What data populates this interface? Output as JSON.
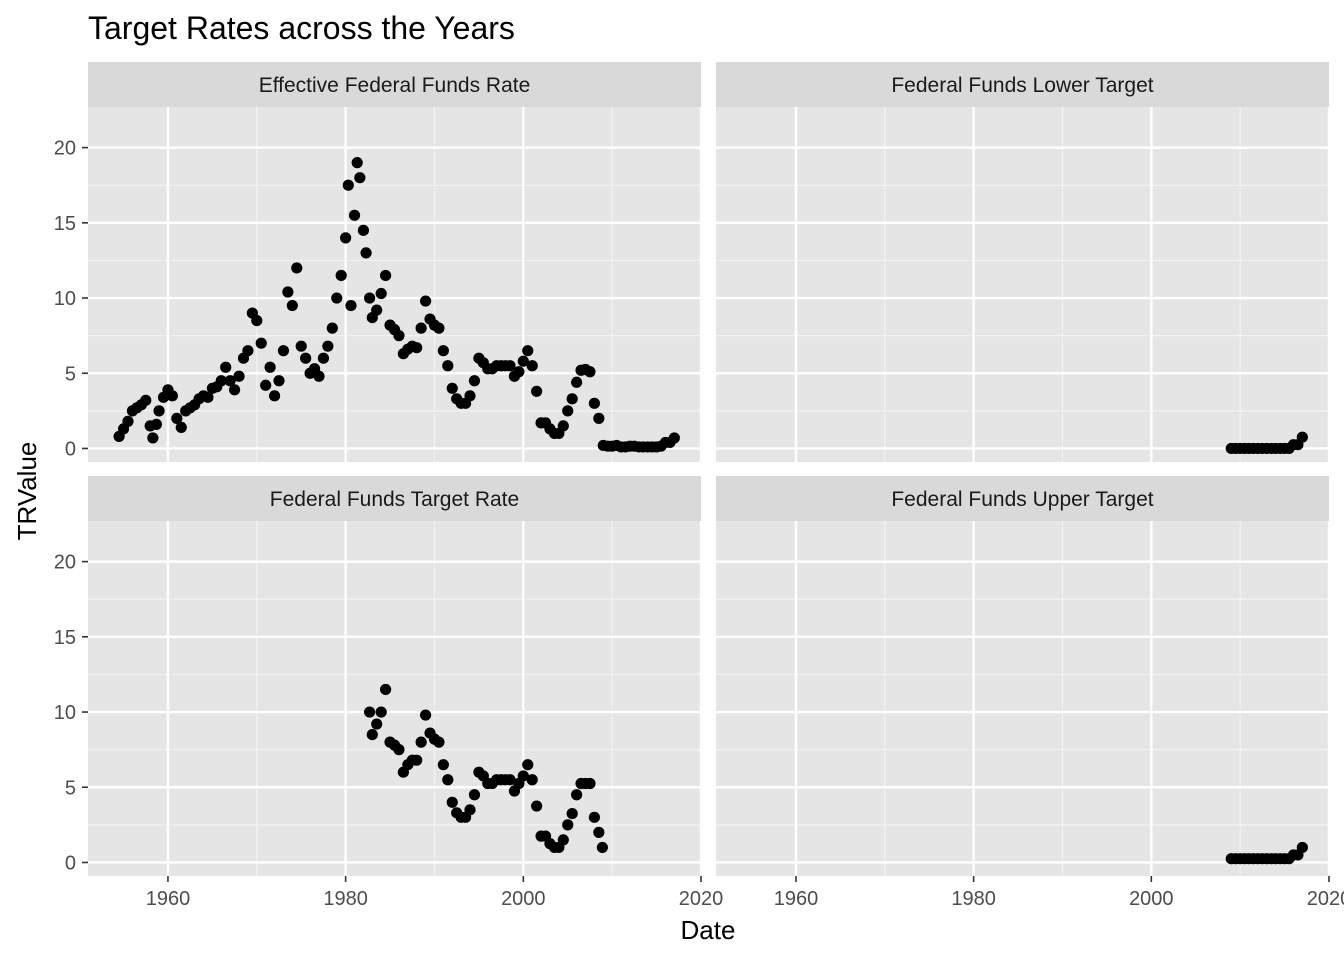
{
  "chart_data": {
    "type": "scatter",
    "title": "Target Rates across the Years",
    "xlabel": "Date",
    "ylabel": "TRValue",
    "xlim": [
      1951,
      2020
    ],
    "ylim": [
      -0.9,
      22.7
    ],
    "x_ticks": [
      1960,
      1980,
      2000,
      2020
    ],
    "y_ticks": [
      0,
      5,
      10,
      15,
      20
    ],
    "grid": true,
    "point_color": "#000000",
    "panel_background": "#e5e5e5",
    "strip_background": "#d9d9d9",
    "facets": [
      {
        "name": "Effective Federal Funds Rate",
        "series": [
          {
            "x": 1954.5,
            "y": 0.8
          },
          {
            "x": 1955.0,
            "y": 1.3
          },
          {
            "x": 1955.5,
            "y": 1.8
          },
          {
            "x": 1956.0,
            "y": 2.5
          },
          {
            "x": 1956.5,
            "y": 2.7
          },
          {
            "x": 1957.0,
            "y": 2.9
          },
          {
            "x": 1957.5,
            "y": 3.2
          },
          {
            "x": 1958.0,
            "y": 1.5
          },
          {
            "x": 1958.3,
            "y": 0.7
          },
          {
            "x": 1958.7,
            "y": 1.6
          },
          {
            "x": 1959.0,
            "y": 2.5
          },
          {
            "x": 1959.5,
            "y": 3.4
          },
          {
            "x": 1960.0,
            "y": 3.9
          },
          {
            "x": 1960.5,
            "y": 3.5
          },
          {
            "x": 1961.0,
            "y": 2.0
          },
          {
            "x": 1961.5,
            "y": 1.4
          },
          {
            "x": 1962.0,
            "y": 2.5
          },
          {
            "x": 1962.5,
            "y": 2.7
          },
          {
            "x": 1963.0,
            "y": 2.9
          },
          {
            "x": 1963.5,
            "y": 3.3
          },
          {
            "x": 1964.0,
            "y": 3.5
          },
          {
            "x": 1964.5,
            "y": 3.4
          },
          {
            "x": 1965.0,
            "y": 4.0
          },
          {
            "x": 1965.5,
            "y": 4.1
          },
          {
            "x": 1966.0,
            "y": 4.5
          },
          {
            "x": 1966.5,
            "y": 5.4
          },
          {
            "x": 1967.0,
            "y": 4.5
          },
          {
            "x": 1967.5,
            "y": 3.9
          },
          {
            "x": 1968.0,
            "y": 4.8
          },
          {
            "x": 1968.5,
            "y": 6.0
          },
          {
            "x": 1969.0,
            "y": 6.5
          },
          {
            "x": 1969.5,
            "y": 9.0
          },
          {
            "x": 1970.0,
            "y": 8.5
          },
          {
            "x": 1970.5,
            "y": 7.0
          },
          {
            "x": 1971.0,
            "y": 4.2
          },
          {
            "x": 1971.5,
            "y": 5.4
          },
          {
            "x": 1972.0,
            "y": 3.5
          },
          {
            "x": 1972.5,
            "y": 4.5
          },
          {
            "x": 1973.0,
            "y": 6.5
          },
          {
            "x": 1973.5,
            "y": 10.4
          },
          {
            "x": 1974.0,
            "y": 9.5
          },
          {
            "x": 1974.5,
            "y": 12.0
          },
          {
            "x": 1975.0,
            "y": 6.8
          },
          {
            "x": 1975.5,
            "y": 6.0
          },
          {
            "x": 1976.0,
            "y": 5.0
          },
          {
            "x": 1976.5,
            "y": 5.3
          },
          {
            "x": 1977.0,
            "y": 4.8
          },
          {
            "x": 1977.5,
            "y": 6.0
          },
          {
            "x": 1978.0,
            "y": 6.8
          },
          {
            "x": 1978.5,
            "y": 8.0
          },
          {
            "x": 1979.0,
            "y": 10.0
          },
          {
            "x": 1979.5,
            "y": 11.5
          },
          {
            "x": 1980.0,
            "y": 14.0
          },
          {
            "x": 1980.3,
            "y": 17.5
          },
          {
            "x": 1980.6,
            "y": 9.5
          },
          {
            "x": 1981.0,
            "y": 15.5
          },
          {
            "x": 1981.3,
            "y": 19.0
          },
          {
            "x": 1981.6,
            "y": 18.0
          },
          {
            "x": 1982.0,
            "y": 14.5
          },
          {
            "x": 1982.3,
            "y": 13.0
          },
          {
            "x": 1982.7,
            "y": 10.0
          },
          {
            "x": 1983.0,
            "y": 8.7
          },
          {
            "x": 1983.5,
            "y": 9.2
          },
          {
            "x": 1984.0,
            "y": 10.3
          },
          {
            "x": 1984.5,
            "y": 11.5
          },
          {
            "x": 1985.0,
            "y": 8.2
          },
          {
            "x": 1985.5,
            "y": 7.9
          },
          {
            "x": 1986.0,
            "y": 7.5
          },
          {
            "x": 1986.5,
            "y": 6.3
          },
          {
            "x": 1987.0,
            "y": 6.6
          },
          {
            "x": 1987.5,
            "y": 6.8
          },
          {
            "x": 1988.0,
            "y": 6.7
          },
          {
            "x": 1988.5,
            "y": 8.0
          },
          {
            "x": 1989.0,
            "y": 9.8
          },
          {
            "x": 1989.5,
            "y": 8.6
          },
          {
            "x": 1990.0,
            "y": 8.2
          },
          {
            "x": 1990.5,
            "y": 8.0
          },
          {
            "x": 1991.0,
            "y": 6.5
          },
          {
            "x": 1991.5,
            "y": 5.5
          },
          {
            "x": 1992.0,
            "y": 4.0
          },
          {
            "x": 1992.5,
            "y": 3.3
          },
          {
            "x": 1993.0,
            "y": 3.0
          },
          {
            "x": 1993.5,
            "y": 3.0
          },
          {
            "x": 1994.0,
            "y": 3.5
          },
          {
            "x": 1994.5,
            "y": 4.5
          },
          {
            "x": 1995.0,
            "y": 6.0
          },
          {
            "x": 1995.5,
            "y": 5.7
          },
          {
            "x": 1996.0,
            "y": 5.3
          },
          {
            "x": 1996.5,
            "y": 5.3
          },
          {
            "x": 1997.0,
            "y": 5.5
          },
          {
            "x": 1997.5,
            "y": 5.5
          },
          {
            "x": 1998.0,
            "y": 5.5
          },
          {
            "x": 1998.5,
            "y": 5.5
          },
          {
            "x": 1999.0,
            "y": 4.8
          },
          {
            "x": 1999.5,
            "y": 5.1
          },
          {
            "x": 2000.0,
            "y": 5.8
          },
          {
            "x": 2000.5,
            "y": 6.5
          },
          {
            "x": 2001.0,
            "y": 5.5
          },
          {
            "x": 2001.5,
            "y": 3.8
          },
          {
            "x": 2002.0,
            "y": 1.7
          },
          {
            "x": 2002.5,
            "y": 1.7
          },
          {
            "x": 2003.0,
            "y": 1.3
          },
          {
            "x": 2003.5,
            "y": 1.0
          },
          {
            "x": 2004.0,
            "y": 1.0
          },
          {
            "x": 2004.5,
            "y": 1.5
          },
          {
            "x": 2005.0,
            "y": 2.5
          },
          {
            "x": 2005.5,
            "y": 3.3
          },
          {
            "x": 2006.0,
            "y": 4.4
          },
          {
            "x": 2006.5,
            "y": 5.2
          },
          {
            "x": 2007.0,
            "y": 5.25
          },
          {
            "x": 2007.5,
            "y": 5.1
          },
          {
            "x": 2008.0,
            "y": 3.0
          },
          {
            "x": 2008.5,
            "y": 2.0
          },
          {
            "x": 2009.0,
            "y": 0.2
          },
          {
            "x": 2009.5,
            "y": 0.15
          },
          {
            "x": 2010.0,
            "y": 0.15
          },
          {
            "x": 2010.5,
            "y": 0.2
          },
          {
            "x": 2011.0,
            "y": 0.1
          },
          {
            "x": 2011.5,
            "y": 0.1
          },
          {
            "x": 2012.0,
            "y": 0.15
          },
          {
            "x": 2012.5,
            "y": 0.15
          },
          {
            "x": 2013.0,
            "y": 0.1
          },
          {
            "x": 2013.5,
            "y": 0.1
          },
          {
            "x": 2014.0,
            "y": 0.1
          },
          {
            "x": 2014.5,
            "y": 0.1
          },
          {
            "x": 2015.0,
            "y": 0.1
          },
          {
            "x": 2015.5,
            "y": 0.15
          },
          {
            "x": 2016.0,
            "y": 0.4
          },
          {
            "x": 2016.5,
            "y": 0.4
          },
          {
            "x": 2017.0,
            "y": 0.7
          }
        ]
      },
      {
        "name": "Federal Funds Lower Target",
        "series": [
          {
            "x": 2009.0,
            "y": 0.0
          },
          {
            "x": 2009.5,
            "y": 0.0
          },
          {
            "x": 2010.0,
            "y": 0.0
          },
          {
            "x": 2010.5,
            "y": 0.0
          },
          {
            "x": 2011.0,
            "y": 0.0
          },
          {
            "x": 2011.5,
            "y": 0.0
          },
          {
            "x": 2012.0,
            "y": 0.0
          },
          {
            "x": 2012.5,
            "y": 0.0
          },
          {
            "x": 2013.0,
            "y": 0.0
          },
          {
            "x": 2013.5,
            "y": 0.0
          },
          {
            "x": 2014.0,
            "y": 0.0
          },
          {
            "x": 2014.5,
            "y": 0.0
          },
          {
            "x": 2015.0,
            "y": 0.0
          },
          {
            "x": 2015.5,
            "y": 0.0
          },
          {
            "x": 2016.0,
            "y": 0.25
          },
          {
            "x": 2016.5,
            "y": 0.25
          },
          {
            "x": 2017.0,
            "y": 0.75
          }
        ]
      },
      {
        "name": "Federal Funds Target Rate",
        "series": [
          {
            "x": 1982.7,
            "y": 10.0
          },
          {
            "x": 1983.0,
            "y": 8.5
          },
          {
            "x": 1983.5,
            "y": 9.2
          },
          {
            "x": 1984.0,
            "y": 10.0
          },
          {
            "x": 1984.5,
            "y": 11.5
          },
          {
            "x": 1985.0,
            "y": 8.0
          },
          {
            "x": 1985.5,
            "y": 7.8
          },
          {
            "x": 1986.0,
            "y": 7.5
          },
          {
            "x": 1986.5,
            "y": 6.0
          },
          {
            "x": 1987.0,
            "y": 6.5
          },
          {
            "x": 1987.5,
            "y": 6.8
          },
          {
            "x": 1988.0,
            "y": 6.8
          },
          {
            "x": 1988.5,
            "y": 8.0
          },
          {
            "x": 1989.0,
            "y": 9.8
          },
          {
            "x": 1989.5,
            "y": 8.6
          },
          {
            "x": 1990.0,
            "y": 8.2
          },
          {
            "x": 1990.5,
            "y": 8.0
          },
          {
            "x": 1991.0,
            "y": 6.5
          },
          {
            "x": 1991.5,
            "y": 5.5
          },
          {
            "x": 1992.0,
            "y": 4.0
          },
          {
            "x": 1992.5,
            "y": 3.3
          },
          {
            "x": 1993.0,
            "y": 3.0
          },
          {
            "x": 1993.5,
            "y": 3.0
          },
          {
            "x": 1994.0,
            "y": 3.5
          },
          {
            "x": 1994.5,
            "y": 4.5
          },
          {
            "x": 1995.0,
            "y": 6.0
          },
          {
            "x": 1995.5,
            "y": 5.75
          },
          {
            "x": 1996.0,
            "y": 5.25
          },
          {
            "x": 1996.5,
            "y": 5.25
          },
          {
            "x": 1997.0,
            "y": 5.5
          },
          {
            "x": 1997.5,
            "y": 5.5
          },
          {
            "x": 1998.0,
            "y": 5.5
          },
          {
            "x": 1998.5,
            "y": 5.5
          },
          {
            "x": 1999.0,
            "y": 4.75
          },
          {
            "x": 1999.5,
            "y": 5.25
          },
          {
            "x": 2000.0,
            "y": 5.75
          },
          {
            "x": 2000.5,
            "y": 6.5
          },
          {
            "x": 2001.0,
            "y": 5.5
          },
          {
            "x": 2001.5,
            "y": 3.75
          },
          {
            "x": 2002.0,
            "y": 1.75
          },
          {
            "x": 2002.5,
            "y": 1.75
          },
          {
            "x": 2003.0,
            "y": 1.25
          },
          {
            "x": 2003.5,
            "y": 1.0
          },
          {
            "x": 2004.0,
            "y": 1.0
          },
          {
            "x": 2004.5,
            "y": 1.5
          },
          {
            "x": 2005.0,
            "y": 2.5
          },
          {
            "x": 2005.5,
            "y": 3.25
          },
          {
            "x": 2006.0,
            "y": 4.5
          },
          {
            "x": 2006.5,
            "y": 5.25
          },
          {
            "x": 2007.0,
            "y": 5.25
          },
          {
            "x": 2007.5,
            "y": 5.25
          },
          {
            "x": 2008.0,
            "y": 3.0
          },
          {
            "x": 2008.5,
            "y": 2.0
          },
          {
            "x": 2008.9,
            "y": 1.0
          }
        ]
      },
      {
        "name": "Federal Funds Upper Target",
        "series": [
          {
            "x": 2009.0,
            "y": 0.25
          },
          {
            "x": 2009.5,
            "y": 0.25
          },
          {
            "x": 2010.0,
            "y": 0.25
          },
          {
            "x": 2010.5,
            "y": 0.25
          },
          {
            "x": 2011.0,
            "y": 0.25
          },
          {
            "x": 2011.5,
            "y": 0.25
          },
          {
            "x": 2012.0,
            "y": 0.25
          },
          {
            "x": 2012.5,
            "y": 0.25
          },
          {
            "x": 2013.0,
            "y": 0.25
          },
          {
            "x": 2013.5,
            "y": 0.25
          },
          {
            "x": 2014.0,
            "y": 0.25
          },
          {
            "x": 2014.5,
            "y": 0.25
          },
          {
            "x": 2015.0,
            "y": 0.25
          },
          {
            "x": 2015.5,
            "y": 0.25
          },
          {
            "x": 2016.0,
            "y": 0.5
          },
          {
            "x": 2016.5,
            "y": 0.5
          },
          {
            "x": 2017.0,
            "y": 1.0
          }
        ]
      }
    ]
  }
}
